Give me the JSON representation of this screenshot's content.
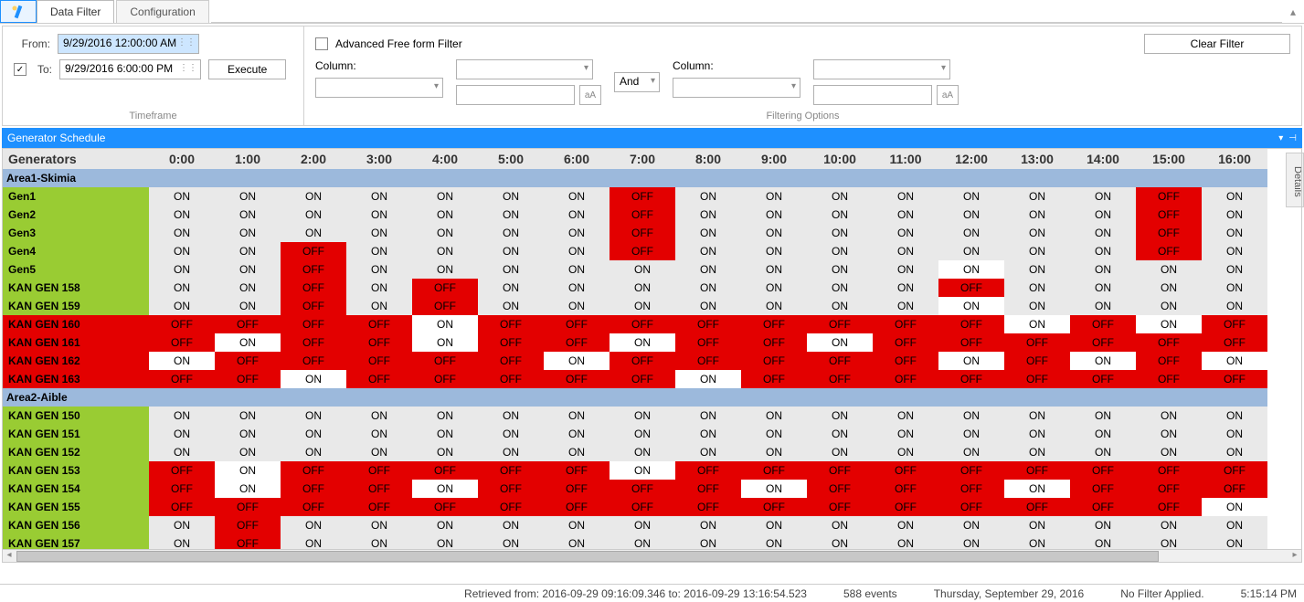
{
  "tabs": {
    "data_filter": "Data Filter",
    "configuration": "Configuration"
  },
  "timeframe": {
    "from_label": "From:",
    "from_value": "9/29/2016 12:00:00 AM",
    "to_label": "To:",
    "to_value": "9/29/2016 6:00:00 PM",
    "to_checked": "✓",
    "execute": "Execute",
    "title": "Timeframe"
  },
  "filtering": {
    "advanced_label": "Advanced Free form Filter",
    "column_label": "Column:",
    "and_label": "And",
    "clear_filter": "Clear Filter",
    "aA": "aA",
    "title": "Filtering Options"
  },
  "panel": {
    "title": "Generator Schedule",
    "details_tab": "Details"
  },
  "grid": {
    "name_header": "Generators",
    "hours": [
      "0:00",
      "1:00",
      "2:00",
      "3:00",
      "4:00",
      "5:00",
      "6:00",
      "7:00",
      "8:00",
      "9:00",
      "10:00",
      "11:00",
      "12:00",
      "13:00",
      "14:00",
      "15:00",
      "16:00"
    ],
    "areas": [
      {
        "name": "Area1-Skimia",
        "rows": [
          {
            "name": "Gen1",
            "color": "green",
            "cells": [
              "ON",
              "ON",
              "ON",
              "ON",
              "ON",
              "ON",
              "ON",
              "OFF",
              "ON",
              "ON",
              "ON",
              "ON",
              "ON",
              "ON",
              "ON",
              "OFF",
              "ON"
            ]
          },
          {
            "name": "Gen2",
            "color": "green",
            "cells": [
              "ON",
              "ON",
              "ON",
              "ON",
              "ON",
              "ON",
              "ON",
              "OFF",
              "ON",
              "ON",
              "ON",
              "ON",
              "ON",
              "ON",
              "ON",
              "OFF",
              "ON"
            ]
          },
          {
            "name": "Gen3",
            "color": "green",
            "cells": [
              "ON",
              "ON",
              "ON",
              "ON",
              "ON",
              "ON",
              "ON",
              "OFF",
              "ON",
              "ON",
              "ON",
              "ON",
              "ON",
              "ON",
              "ON",
              "OFF",
              "ON"
            ]
          },
          {
            "name": "Gen4",
            "color": "green",
            "cells": [
              "ON",
              "ON",
              "OFF",
              "ON",
              "ON",
              "ON",
              "ON",
              "OFF",
              "ON",
              "ON",
              "ON",
              "ON",
              "ON",
              "ON",
              "ON",
              "OFF",
              "ON"
            ]
          },
          {
            "name": "Gen5",
            "color": "green",
            "cells": [
              "ON",
              "ON",
              "OFF",
              "ON",
              "ON",
              "ON",
              "ON",
              "ON",
              "ON",
              "ON",
              "ON",
              "ON",
              "ONw",
              "ON",
              "ON",
              "ON",
              "ON"
            ]
          },
          {
            "name": "KAN GEN 158",
            "color": "green",
            "cells": [
              "ON",
              "ON",
              "OFF",
              "ON",
              "OFF",
              "ON",
              "ON",
              "ON",
              "ON",
              "ON",
              "ON",
              "ON",
              "OFF",
              "ON",
              "ON",
              "ON",
              "ON"
            ]
          },
          {
            "name": "KAN GEN 159",
            "color": "green",
            "cells": [
              "ON",
              "ON",
              "OFF",
              "ON",
              "OFF",
              "ON",
              "ON",
              "ON",
              "ON",
              "ON",
              "ON",
              "ON",
              "ONw",
              "ON",
              "ON",
              "ON",
              "ON"
            ]
          },
          {
            "name": "KAN GEN 160",
            "color": "red",
            "cells": [
              "OFF",
              "OFF",
              "OFF",
              "OFF",
              "ONw",
              "OFF",
              "OFF",
              "OFF",
              "OFF",
              "OFF",
              "OFF",
              "OFF",
              "OFF",
              "ONw",
              "OFF",
              "ONw",
              "OFF"
            ]
          },
          {
            "name": "KAN GEN 161",
            "color": "red",
            "cells": [
              "OFF",
              "ONw",
              "OFF",
              "OFF",
              "ONw",
              "OFF",
              "OFF",
              "ONw",
              "OFF",
              "OFF",
              "ONw",
              "OFF",
              "OFF",
              "OFF",
              "OFF",
              "OFF",
              "OFF"
            ]
          },
          {
            "name": "KAN GEN 162",
            "color": "red",
            "cells": [
              "ONw",
              "OFF",
              "OFF",
              "OFF",
              "OFF",
              "OFF",
              "ONw",
              "OFF",
              "OFF",
              "OFF",
              "OFF",
              "OFF",
              "ONw",
              "OFF",
              "ONw",
              "OFF",
              "ONw"
            ]
          },
          {
            "name": "KAN GEN 163",
            "color": "red",
            "cells": [
              "OFF",
              "OFF",
              "ONw",
              "OFF",
              "OFF",
              "OFF",
              "OFF",
              "OFF",
              "ONw",
              "OFF",
              "OFF",
              "OFF",
              "OFF",
              "OFF",
              "OFF",
              "OFF",
              "OFF"
            ]
          }
        ]
      },
      {
        "name": "Area2-Aible",
        "rows": [
          {
            "name": "KAN GEN 150",
            "color": "green",
            "cells": [
              "ON",
              "ON",
              "ON",
              "ON",
              "ON",
              "ON",
              "ON",
              "ON",
              "ON",
              "ON",
              "ON",
              "ON",
              "ON",
              "ON",
              "ON",
              "ON",
              "ON"
            ]
          },
          {
            "name": "KAN GEN 151",
            "color": "green",
            "cells": [
              "ON",
              "ON",
              "ON",
              "ON",
              "ON",
              "ON",
              "ON",
              "ON",
              "ON",
              "ON",
              "ON",
              "ON",
              "ON",
              "ON",
              "ON",
              "ON",
              "ON"
            ]
          },
          {
            "name": "KAN GEN 152",
            "color": "green",
            "cells": [
              "ON",
              "ON",
              "ON",
              "ON",
              "ON",
              "ON",
              "ON",
              "ON",
              "ON",
              "ON",
              "ON",
              "ON",
              "ON",
              "ON",
              "ON",
              "ON",
              "ON"
            ]
          },
          {
            "name": "KAN GEN 153",
            "color": "green",
            "cells": [
              "OFF",
              "ONw",
              "OFF",
              "OFF",
              "OFF",
              "OFF",
              "OFF",
              "ONw",
              "OFF",
              "OFF",
              "OFF",
              "OFF",
              "OFF",
              "OFF",
              "OFF",
              "OFF",
              "OFF"
            ]
          },
          {
            "name": "KAN GEN 154",
            "color": "green",
            "cells": [
              "OFF",
              "ONw",
              "OFF",
              "OFF",
              "ONw",
              "OFF",
              "OFF",
              "OFF",
              "OFF",
              "ONw",
              "OFF",
              "OFF",
              "OFF",
              "ONw",
              "OFF",
              "OFF",
              "OFF"
            ]
          },
          {
            "name": "KAN GEN 155",
            "color": "green",
            "cells": [
              "OFF",
              "OFF",
              "OFF",
              "OFF",
              "OFF",
              "OFF",
              "OFF",
              "OFF",
              "OFF",
              "OFF",
              "OFF",
              "OFF",
              "OFF",
              "OFF",
              "OFF",
              "OFF",
              "ONw"
            ]
          },
          {
            "name": "KAN GEN 156",
            "color": "green",
            "cells": [
              "ON",
              "OFF",
              "ON",
              "ON",
              "ON",
              "ON",
              "ON",
              "ON",
              "ON",
              "ON",
              "ON",
              "ON",
              "ON",
              "ON",
              "ON",
              "ON",
              "ON"
            ]
          },
          {
            "name": "KAN GEN 157",
            "color": "green",
            "cells": [
              "ON",
              "OFF",
              "ON",
              "ON",
              "ON",
              "ON",
              "ON",
              "ON",
              "ON",
              "ON",
              "ON",
              "ON",
              "ON",
              "ON",
              "ON",
              "ON",
              "ON"
            ]
          }
        ]
      }
    ]
  },
  "status": {
    "retrieved": "Retrieved from: 2016-09-29 09:16:09.346 to: 2016-09-29 13:16:54.523",
    "events": "588 events",
    "date": "Thursday, September 29, 2016",
    "filter": "No Filter Applied.",
    "time": "5:15:14 PM"
  },
  "colors": {
    "accent": "#1e90ff",
    "on_bg": "#e9e9e9",
    "on_white_bg": "#ffffff",
    "off_bg": "#e30000",
    "name_green": "#99cc33",
    "name_red": "#e30000",
    "area_bg": "#9cb9dc"
  }
}
